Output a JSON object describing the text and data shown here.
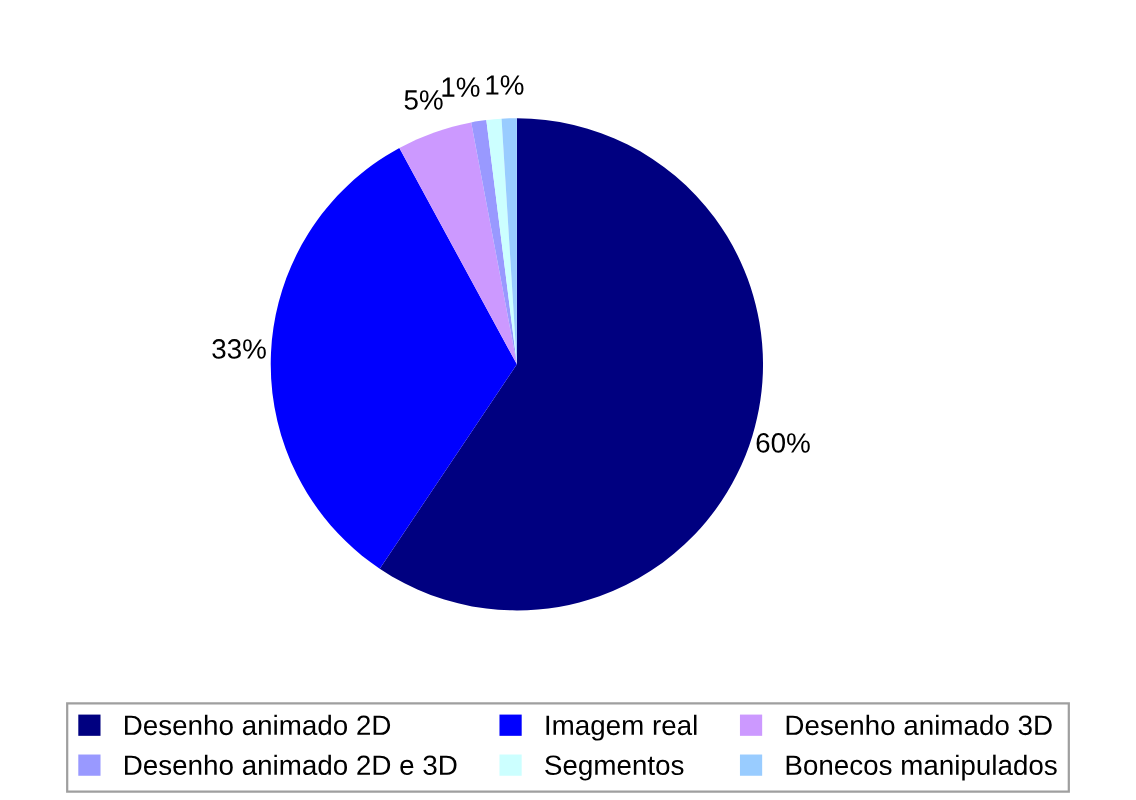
{
  "chart_data": {
    "type": "pie",
    "categories": [
      "Desenho animado 2D",
      "Imagem real",
      "Desenho animado 3D",
      "Desenho animado 2D e 3D",
      "Segmentos",
      "Bonecos manipulados"
    ],
    "values": [
      60,
      33,
      5,
      1,
      1,
      1
    ],
    "value_labels": [
      "60%",
      "33%",
      "5%",
      "1%",
      "1%",
      null
    ],
    "colors": [
      "#000080",
      "#0000ff",
      "#cc99ff",
      "#9999ff",
      "#ccffff",
      "#99ccff"
    ],
    "legend": "bottom"
  }
}
